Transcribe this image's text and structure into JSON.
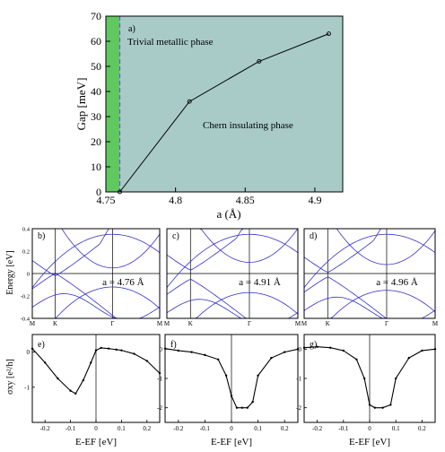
{
  "chart_data": [
    {
      "type": "line",
      "panel_label": "a)",
      "xlabel": "a (Å)",
      "ylabel": "Gap [meV]",
      "xlim": [
        4.75,
        4.92
      ],
      "ylim": [
        0,
        70
      ],
      "x_ticks": [
        "4.75",
        "4.8",
        "4.85",
        "4.9"
      ],
      "y_ticks": [
        "0",
        "10",
        "20",
        "30",
        "40",
        "50",
        "60",
        "70"
      ],
      "x": [
        4.76,
        4.81,
        4.86,
        4.91
      ],
      "y": [
        0,
        36,
        52,
        63
      ],
      "regions": [
        {
          "label": "Trivial metallic phase",
          "x_from": 4.75,
          "x_to": 4.76,
          "color": "#5fc85f"
        },
        {
          "label": "Chern insulating phase",
          "x_from": 4.76,
          "x_to": 4.92,
          "color": "#a8cbc8"
        }
      ],
      "boundary_x": 4.76,
      "boundary_color": "#6a5acd"
    },
    {
      "type": "line",
      "panel_label": "b)",
      "ylabel": "Energy [eV]",
      "ylim": [
        -0.4,
        0.4
      ],
      "y_ticks": [
        "0.4",
        "0.2",
        "0",
        "-0.2",
        "-0.4"
      ],
      "k_labels": [
        "M",
        "K",
        "Γ",
        "M"
      ],
      "annotation": "a = 4.76 Å"
    },
    {
      "type": "line",
      "panel_label": "c)",
      "k_labels": [
        "M",
        "K",
        "Γ",
        "M"
      ],
      "annotation": "a = 4.91 Å"
    },
    {
      "type": "line",
      "panel_label": "d)",
      "k_labels": [
        "M",
        "K",
        "Γ",
        "M"
      ],
      "annotation": "a = 4.96 Å"
    },
    {
      "type": "line",
      "panel_label": "e)",
      "ylabel": "σxy [e²/h]",
      "xlabel": "E-EF [eV]",
      "y_ticks": [
        "0",
        "-1"
      ],
      "x_ticks": [
        "-0.2",
        "-0.1",
        "0",
        "0.1",
        "0.2"
      ],
      "x": [
        -0.25,
        -0.2,
        -0.15,
        -0.1,
        -0.08,
        -0.05,
        -0.02,
        0,
        0.02,
        0.05,
        0.08,
        0.1,
        0.15,
        0.2,
        0.25
      ],
      "y": [
        0.1,
        -0.3,
        -0.75,
        -1.1,
        -1.18,
        -0.8,
        -0.3,
        0.05,
        0.12,
        0.1,
        0.07,
        0.05,
        -0.05,
        -0.25,
        -0.6
      ]
    },
    {
      "type": "line",
      "panel_label": "f)",
      "xlabel": "E-EF [eV]",
      "y_ticks": [
        "0",
        "-1",
        "-2"
      ],
      "x_ticks": [
        "-0.2",
        "-0.1",
        "0",
        "0.1",
        "0.2"
      ],
      "x": [
        -0.25,
        -0.2,
        -0.15,
        -0.1,
        -0.05,
        -0.02,
        0,
        0.02,
        0.04,
        0.06,
        0.08,
        0.1,
        0.15,
        0.2,
        0.25
      ],
      "y": [
        0.02,
        -0.05,
        -0.1,
        -0.2,
        -0.35,
        -0.9,
        -1.6,
        -2.0,
        -2.0,
        -2.0,
        -1.8,
        -0.9,
        -0.3,
        -0.1,
        0
      ]
    },
    {
      "type": "line",
      "panel_label": "g)",
      "xlabel": "E-EF [eV]",
      "y_ticks": [
        "0",
        "-1",
        "-2"
      ],
      "x_ticks": [
        "-0.2",
        "-0.1",
        "0",
        "0.1",
        "0.2"
      ],
      "x": [
        -0.25,
        -0.2,
        -0.15,
        -0.1,
        -0.05,
        -0.02,
        0,
        0.02,
        0.05,
        0.08,
        0.1,
        0.15,
        0.2,
        0.25
      ],
      "y": [
        0.05,
        0.08,
        0.05,
        -0.05,
        -0.35,
        -1.0,
        -1.9,
        -2.0,
        -2.0,
        -1.9,
        -1.0,
        -0.3,
        -0.05,
        0
      ]
    }
  ]
}
